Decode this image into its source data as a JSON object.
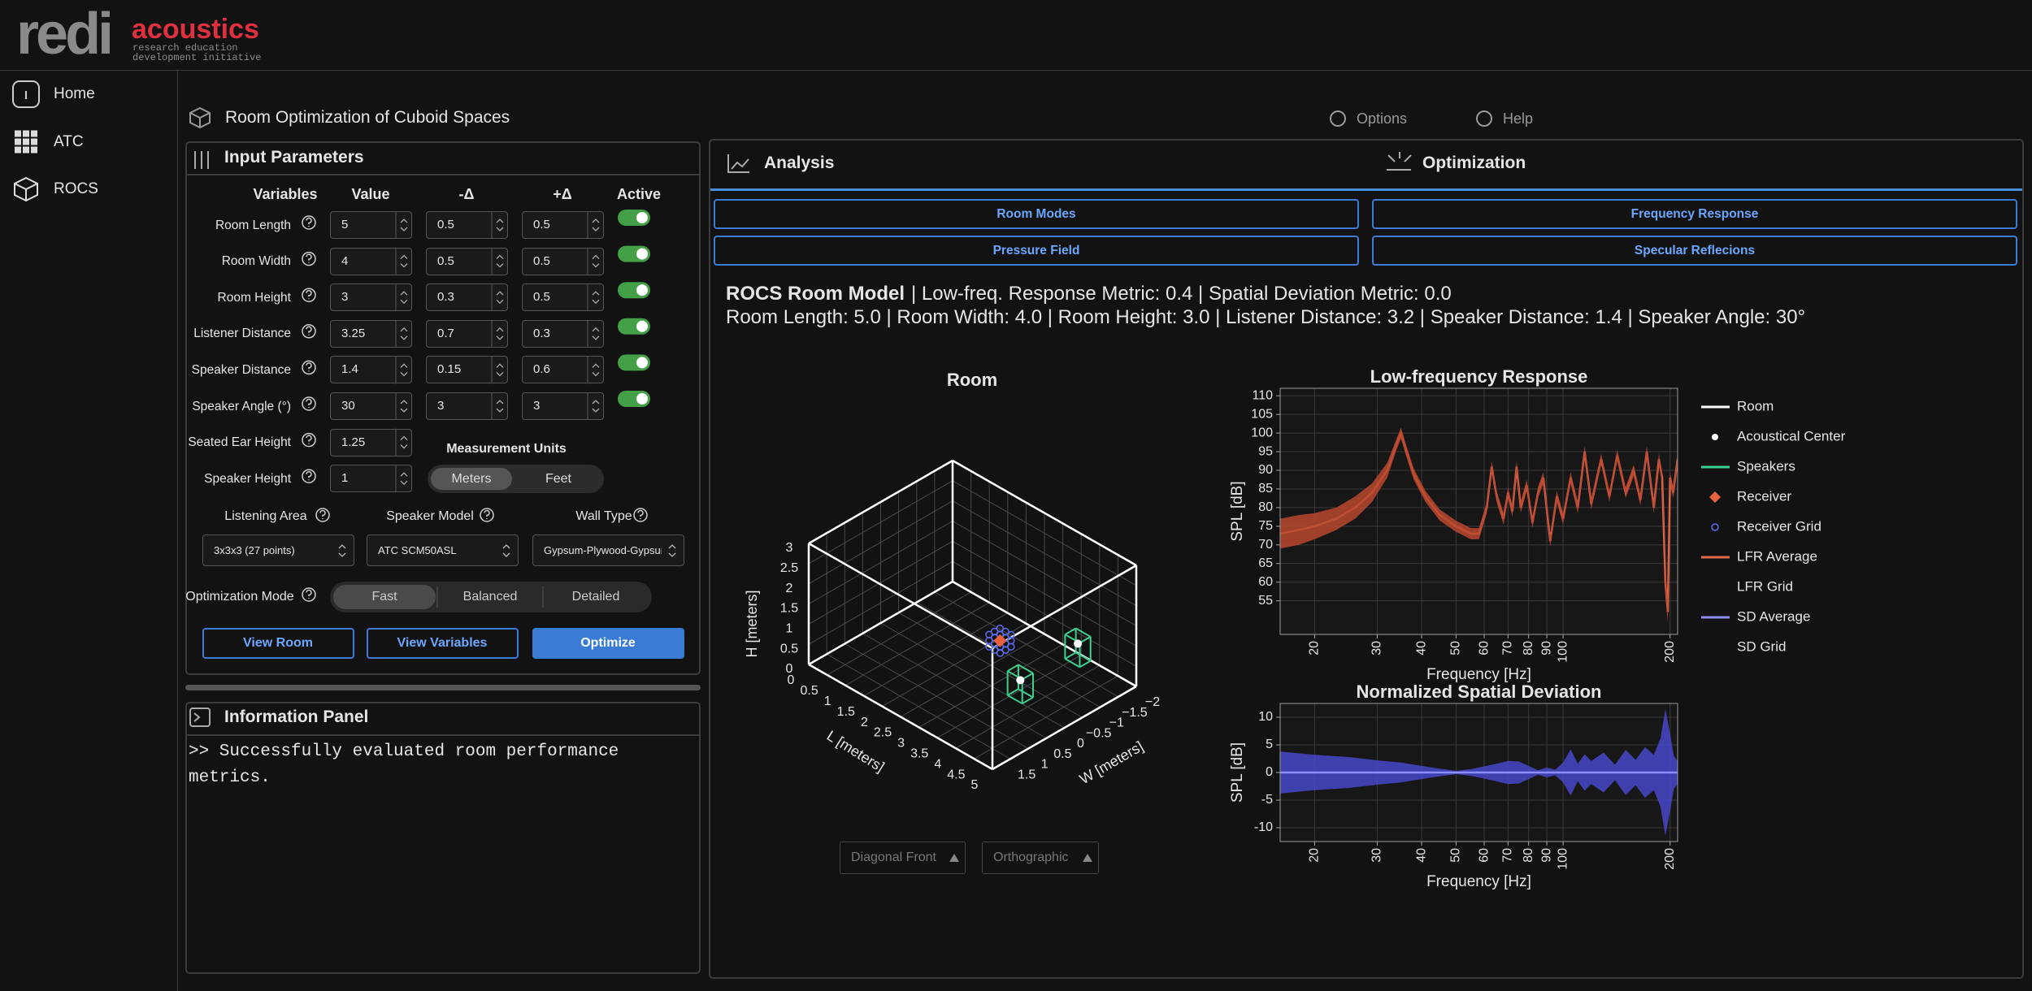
{
  "header": {
    "logo_word": "redi",
    "brand": "acoustics",
    "tagline": [
      "research education",
      "development initiative"
    ]
  },
  "sidebar": [
    "Home",
    "ATC",
    "ROCS"
  ],
  "page_title": "Room Optimization of Cuboid Spaces",
  "toolbar": [
    "Options",
    "Help"
  ],
  "input_parameters": {
    "title": "Input Parameters",
    "columns": [
      "Variables",
      "Value",
      "-Δ",
      "+Δ",
      "Active"
    ],
    "rows": [
      {
        "label": "Room Length",
        "value": "5",
        "minus": "0.5",
        "plus": "0.5",
        "active": true
      },
      {
        "label": "Room Width",
        "value": "4",
        "minus": "0.5",
        "plus": "0.5",
        "active": true
      },
      {
        "label": "Room Height",
        "value": "3",
        "minus": "0.3",
        "plus": "0.5",
        "active": true
      },
      {
        "label": "Listener Distance",
        "value": "3.25",
        "minus": "0.7",
        "plus": "0.3",
        "active": true
      },
      {
        "label": "Speaker Distance",
        "value": "1.4",
        "minus": "0.15",
        "plus": "0.6",
        "active": true
      },
      {
        "label": "Speaker Angle (°)",
        "value": "30",
        "minus": "3",
        "plus": "3",
        "active": true
      },
      {
        "label": "Seated Ear Height",
        "value": "1.25"
      },
      {
        "label": "Speaker Height",
        "value": "1"
      }
    ],
    "measurement_units": {
      "title": "Measurement Units",
      "options": [
        "Meters",
        "Feet"
      ],
      "selected": 0
    },
    "selects": [
      {
        "label": "Listening Area",
        "value": "3x3x3 (27 points)"
      },
      {
        "label": "Speaker Model",
        "value": "ATC SCM50ASL"
      },
      {
        "label": "Wall Type",
        "value": "Gypsum-Plywood-Gypsum"
      }
    ],
    "optimization_mode": {
      "label": "Optimization Mode",
      "options": [
        "Fast",
        "Balanced",
        "Detailed"
      ],
      "selected": 0
    },
    "buttons": [
      "View Room",
      "View Variables",
      "Optimize"
    ]
  },
  "information_panel": {
    "title": "Information Panel",
    "message": ">> Successfully evaluated room performance metrics."
  },
  "tabs": [
    "Analysis",
    "Optimization"
  ],
  "view_buttons": [
    "Room Modes",
    "Frequency Response",
    "Pressure Field",
    "Specular Reflecions"
  ],
  "summary": {
    "model": "ROCS Room Model",
    "metrics": "| Low-freq. Response Metric: 0.4 | Spatial Deviation Metric: 0.0",
    "dimensions": "Room Length: 5.0 | Room Width: 4.0 | Room Height: 3.0 | Listener Distance: 3.2 | Speaker Distance: 1.4 | Speaker Angle: 30°"
  },
  "room_plot": {
    "title": "Room",
    "h_label": "H [meters]",
    "l_label": "L [meters]",
    "w_label": "W [meters]",
    "h_ticks": [
      0,
      0.5,
      1,
      1.5,
      2,
      2.5,
      3
    ],
    "l_ticks": [
      0,
      0.5,
      1,
      1.5,
      2,
      2.5,
      3,
      3.5,
      4,
      4.5,
      5
    ],
    "w_ticks": [
      1.5,
      1,
      0.5,
      0,
      {
        "value": -0.5,
        "label": "−0.5"
      },
      {
        "value": -1,
        "label": "−1"
      },
      {
        "value": -1.5,
        "label": "−1.5"
      },
      {
        "value": -2,
        "label": "−2"
      }
    ],
    "legend": [
      {
        "name": "Room",
        "color": "#ffffff",
        "marker": "line"
      },
      {
        "name": "Acoustical Center",
        "color": "#ffffff",
        "marker": "dot"
      },
      {
        "name": "Speakers",
        "color": "#3ecf8e",
        "marker": "line"
      },
      {
        "name": "Receiver",
        "color": "#e8603c",
        "marker": "diamond"
      },
      {
        "name": "Receiver Grid",
        "color": "#5a6cf0",
        "marker": "ring"
      }
    ],
    "view_controls": [
      "Diagonal Front",
      "Orthographic"
    ]
  },
  "chart_data": [
    {
      "type": "line",
      "title": "Low-frequency Response",
      "x_label": "Frequency [Hz]",
      "y_label": "SPL [dB]",
      "log_x": true,
      "grid": true,
      "xlim": [
        16,
        210
      ],
      "ylim": [
        46,
        112
      ],
      "xticks": [
        20,
        30,
        40,
        50,
        60,
        70,
        80,
        90,
        100,
        200
      ],
      "yticks": [
        55,
        60,
        65,
        70,
        75,
        80,
        85,
        90,
        95,
        100,
        105,
        110
      ],
      "x": [
        16,
        18,
        20,
        23,
        26,
        29,
        32,
        34,
        35,
        36,
        38,
        41,
        45,
        50,
        55,
        58,
        61,
        63,
        65,
        68,
        70,
        72,
        74,
        76,
        79,
        82,
        85,
        88,
        92,
        96,
        100,
        105,
        110,
        115,
        120,
        128,
        135,
        142,
        150,
        158,
        165,
        172,
        180,
        186,
        190,
        194,
        197,
        200,
        204,
        210
      ],
      "series": [
        {
          "name": "LFR Average",
          "color": "#e3694a",
          "legend_marker": "line",
          "values": [
            73,
            74,
            75,
            77,
            80,
            84,
            90,
            97,
            100,
            96,
            89,
            83,
            78,
            75,
            73,
            73,
            80,
            91,
            83,
            77,
            84,
            79,
            91,
            80,
            86,
            76,
            84,
            88,
            71,
            83,
            77,
            88,
            80,
            95,
            81,
            93,
            83,
            94,
            84,
            90,
            82,
            95,
            80,
            93,
            88,
            60,
            52,
            88,
            84,
            93
          ]
        },
        {
          "name": "LFR Grid",
          "color": "#b9482f",
          "legend_marker": "none",
          "upper": [
            77,
            78,
            78.5,
            80,
            83,
            86.5,
            92,
            98.5,
            101.5,
            97.5,
            90.5,
            84.5,
            79.5,
            76.5,
            74.5,
            74.5,
            81.5,
            92.5,
            84.5,
            78.5,
            85.5,
            80.5,
            92.5,
            81.5,
            87.5,
            77.5,
            85.5,
            89.5,
            72.5,
            84.5,
            78.5,
            89.5,
            81.5,
            96.5,
            82.5,
            94.5,
            84.5,
            95.5,
            85.5,
            91.5,
            83.5,
            96.5,
            81.5,
            94.5,
            89.5,
            63,
            55,
            89.5,
            85.5,
            94.5
          ],
          "lower": [
            69,
            70,
            71.5,
            74,
            77,
            81.5,
            88,
            95.5,
            98.5,
            94.5,
            87.5,
            81.5,
            76.5,
            73.5,
            71.5,
            71.5,
            78.5,
            89.5,
            81.5,
            75.5,
            82.5,
            77.5,
            89.5,
            78.5,
            84.5,
            74.5,
            82.5,
            86.5,
            69.5,
            81.5,
            75.5,
            86.5,
            78.5,
            93.5,
            79.5,
            91.5,
            81.5,
            92.5,
            82.5,
            88.5,
            80.5,
            93.5,
            78.5,
            91.5,
            86.5,
            57,
            49,
            86.5,
            82.5,
            91.5
          ]
        }
      ]
    },
    {
      "type": "line",
      "title": "Normalized Spatial Deviation",
      "x_label": "Frequency [Hz]",
      "y_label": "SPL [dB]",
      "log_x": true,
      "grid": true,
      "xlim": [
        16,
        210
      ],
      "ylim": [
        -12.5,
        12.5
      ],
      "xticks": [
        20,
        30,
        40,
        50,
        60,
        70,
        80,
        90,
        100,
        200
      ],
      "yticks": [
        -10,
        -5,
        0,
        5,
        10
      ],
      "x": [
        16,
        20,
        25,
        30,
        35,
        40,
        45,
        50,
        55,
        60,
        65,
        70,
        75,
        80,
        85,
        90,
        95,
        100,
        105,
        110,
        115,
        120,
        130,
        140,
        150,
        160,
        170,
        180,
        188,
        194,
        200,
        205,
        210
      ],
      "series": [
        {
          "name": "SD Grid",
          "color": "#4646c8",
          "legend_marker": "none",
          "upper": [
            3.8,
            3.2,
            2.8,
            2.2,
            1.8,
            1.2,
            0.7,
            0.3,
            0.6,
            1.1,
            1.6,
            2.1,
            2,
            1.2,
            0.4,
            0.9,
            0.5,
            1.8,
            4.2,
            1.6,
            3.3,
            2.1,
            3.6,
            1.4,
            4.1,
            2.3,
            4.6,
            3.2,
            6.2,
            11.5,
            7,
            3,
            2
          ],
          "lower": [
            -3.8,
            -3.2,
            -2.8,
            -2.2,
            -1.8,
            -1.2,
            -0.7,
            -0.3,
            -0.6,
            -1.1,
            -1.6,
            -2.1,
            -2,
            -1.2,
            -0.4,
            -0.9,
            -0.5,
            -1.8,
            -4.2,
            -1.6,
            -3.3,
            -2.1,
            -3.6,
            -1.4,
            -4.1,
            -2.3,
            -4.6,
            -3.2,
            -6.2,
            -11.5,
            -7,
            -3,
            -2
          ]
        },
        {
          "name": "SD Average",
          "color": "#8c8cff",
          "legend_marker": "line",
          "values": [
            0,
            0,
            0,
            0,
            0,
            0,
            0,
            0,
            0,
            0,
            0,
            0,
            0,
            0,
            0,
            0,
            0,
            0,
            0,
            0,
            0,
            0,
            0,
            0,
            0,
            0,
            0,
            0,
            0,
            0,
            0,
            0,
            0
          ]
        }
      ]
    }
  ]
}
